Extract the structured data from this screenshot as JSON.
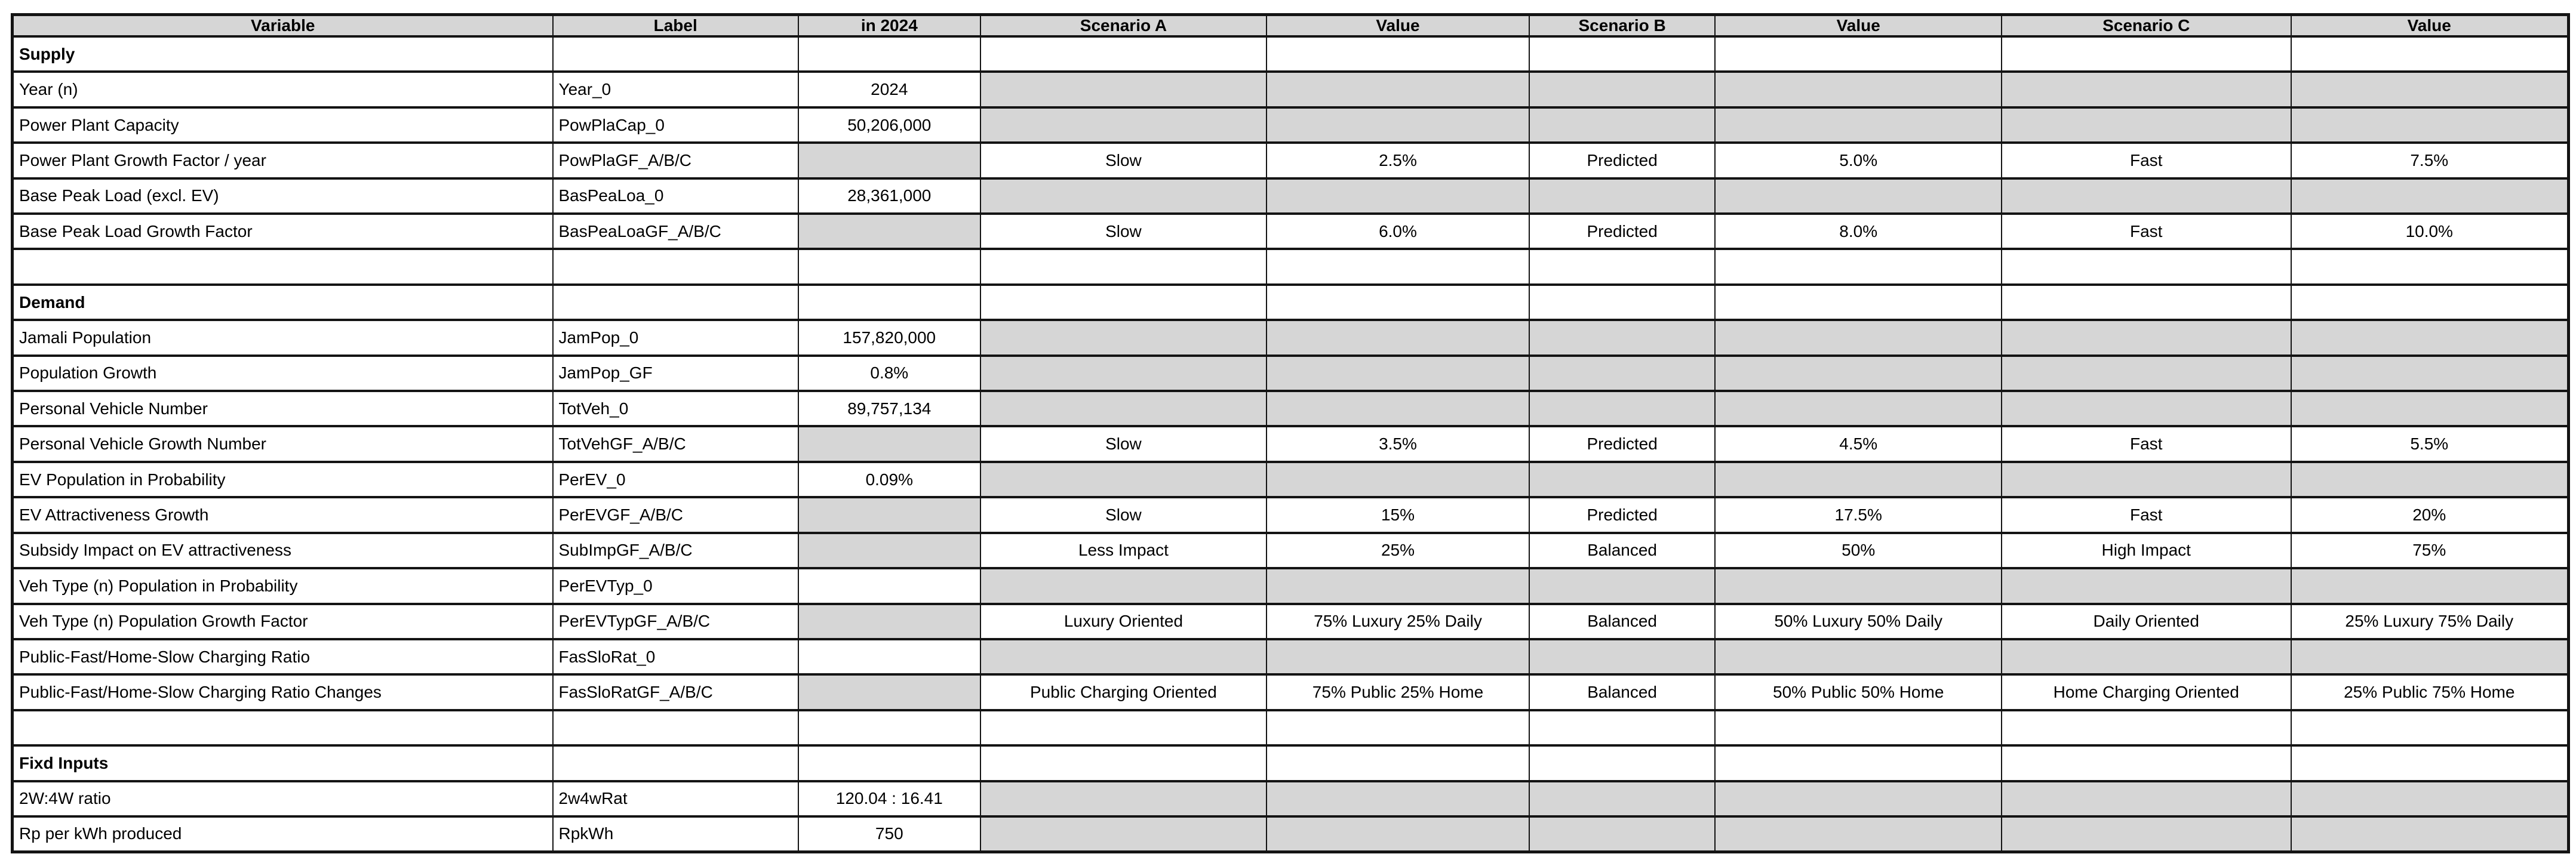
{
  "table": {
    "columns": [
      "Variable",
      "Label",
      "in 2024",
      "Scenario A",
      "Value",
      "Scenario B",
      "Value",
      "Scenario C",
      "Value"
    ],
    "rows": [
      {
        "section": true,
        "gray": [],
        "cells": [
          "Supply",
          "",
          "",
          "",
          "",
          "",
          "",
          "",
          ""
        ]
      },
      {
        "section": false,
        "gray": [
          3,
          4,
          5,
          6,
          7,
          8
        ],
        "cells": [
          "Year (n)",
          "Year_0",
          "2024",
          "",
          "",
          "",
          "",
          "",
          ""
        ]
      },
      {
        "section": false,
        "gray": [
          3,
          4,
          5,
          6,
          7,
          8
        ],
        "cells": [
          "Power Plant Capacity",
          "PowPlaCap_0",
          "50,206,000",
          "",
          "",
          "",
          "",
          "",
          ""
        ]
      },
      {
        "section": false,
        "gray": [
          2
        ],
        "cells": [
          "Power Plant Growth Factor / year",
          "PowPlaGF_A/B/C",
          "",
          "Slow",
          "2.5%",
          "Predicted",
          "5.0%",
          "Fast",
          "7.5%"
        ]
      },
      {
        "section": false,
        "gray": [
          3,
          4,
          5,
          6,
          7,
          8
        ],
        "cells": [
          "Base Peak Load (excl. EV)",
          "BasPeaLoa_0",
          "28,361,000",
          "",
          "",
          "",
          "",
          "",
          ""
        ]
      },
      {
        "section": false,
        "gray": [
          2
        ],
        "cells": [
          "Base Peak Load Growth Factor",
          "BasPeaLoaGF_A/B/C",
          "",
          "Slow",
          "6.0%",
          "Predicted",
          "8.0%",
          "Fast",
          "10.0%"
        ]
      },
      {
        "section": false,
        "gray": [],
        "cells": [
          "",
          "",
          "",
          "",
          "",
          "",
          "",
          "",
          ""
        ]
      },
      {
        "section": true,
        "gray": [],
        "cells": [
          "Demand",
          "",
          "",
          "",
          "",
          "",
          "",
          "",
          ""
        ]
      },
      {
        "section": false,
        "gray": [
          3,
          4,
          5,
          6,
          7,
          8
        ],
        "cells": [
          "Jamali Population",
          "JamPop_0",
          "157,820,000",
          "",
          "",
          "",
          "",
          "",
          ""
        ]
      },
      {
        "section": false,
        "gray": [
          3,
          4,
          5,
          6,
          7,
          8
        ],
        "cells": [
          "Population Growth",
          "JamPop_GF",
          "0.8%",
          "",
          "",
          "",
          "",
          "",
          ""
        ]
      },
      {
        "section": false,
        "gray": [
          3,
          4,
          5,
          6,
          7,
          8
        ],
        "cells": [
          "Personal Vehicle Number",
          "TotVeh_0",
          "89,757,134",
          "",
          "",
          "",
          "",
          "",
          ""
        ]
      },
      {
        "section": false,
        "gray": [
          2
        ],
        "cells": [
          "Personal Vehicle Growth Number",
          "TotVehGF_A/B/C",
          "",
          "Slow",
          "3.5%",
          "Predicted",
          "4.5%",
          "Fast",
          "5.5%"
        ]
      },
      {
        "section": false,
        "gray": [
          3,
          4,
          5,
          6,
          7,
          8
        ],
        "cells": [
          "EV Population in Probability",
          "PerEV_0",
          "0.09%",
          "",
          "",
          "",
          "",
          "",
          ""
        ]
      },
      {
        "section": false,
        "gray": [
          2
        ],
        "cells": [
          "EV Attractiveness Growth",
          "PerEVGF_A/B/C",
          "",
          "Slow",
          "15%",
          "Predicted",
          "17.5%",
          "Fast",
          "20%"
        ]
      },
      {
        "section": false,
        "gray": [
          2
        ],
        "cells": [
          "Subsidy Impact on EV attractiveness",
          "SubImpGF_A/B/C",
          "",
          "Less Impact",
          "25%",
          "Balanced",
          "50%",
          "High Impact",
          "75%"
        ]
      },
      {
        "section": false,
        "gray": [
          3,
          4,
          5,
          6,
          7,
          8
        ],
        "cells": [
          "Veh Type (n) Population in Probability",
          "PerEVTyp_0",
          "",
          "",
          "",
          "",
          "",
          "",
          ""
        ]
      },
      {
        "section": false,
        "gray": [
          2
        ],
        "cells": [
          "Veh Type (n) Population Growth Factor",
          "PerEVTypGF_A/B/C",
          "",
          "Luxury Oriented",
          "75% Luxury 25% Daily",
          "Balanced",
          "50% Luxury 50% Daily",
          "Daily Oriented",
          "25% Luxury 75% Daily"
        ]
      },
      {
        "section": false,
        "gray": [
          3,
          4,
          5,
          6,
          7,
          8
        ],
        "cells": [
          "Public-Fast/Home-Slow Charging Ratio",
          "FasSloRat_0",
          "",
          "",
          "",
          "",
          "",
          "",
          ""
        ]
      },
      {
        "section": false,
        "gray": [
          2
        ],
        "cells": [
          "Public-Fast/Home-Slow Charging Ratio Changes",
          "FasSloRatGF_A/B/C",
          "",
          "Public Charging Oriented",
          "75% Public 25% Home",
          "Balanced",
          "50% Public 50% Home",
          "Home Charging Oriented",
          "25% Public 75% Home"
        ]
      },
      {
        "section": false,
        "gray": [],
        "cells": [
          "",
          "",
          "",
          "",
          "",
          "",
          "",
          "",
          ""
        ]
      },
      {
        "section": true,
        "gray": [],
        "cells": [
          "Fixd Inputs",
          "",
          "",
          "",
          "",
          "",
          "",
          "",
          ""
        ]
      },
      {
        "section": false,
        "gray": [
          3,
          4,
          5,
          6,
          7,
          8
        ],
        "cells": [
          "2W:4W ratio",
          "2w4wRat",
          "120.04 : 16.41",
          "",
          "",
          "",
          "",
          "",
          ""
        ]
      },
      {
        "section": false,
        "gray": [
          3,
          4,
          5,
          6,
          7,
          8
        ],
        "cells": [
          "Rp per kWh produced",
          "RpkWh",
          "750",
          "",
          "",
          "",
          "",
          "",
          ""
        ]
      }
    ]
  },
  "colors": {
    "header_bg": "#d6d6d6",
    "shaded_cell_bg": "#d6d6d6",
    "border": "#141414",
    "background": "#ffffff"
  }
}
